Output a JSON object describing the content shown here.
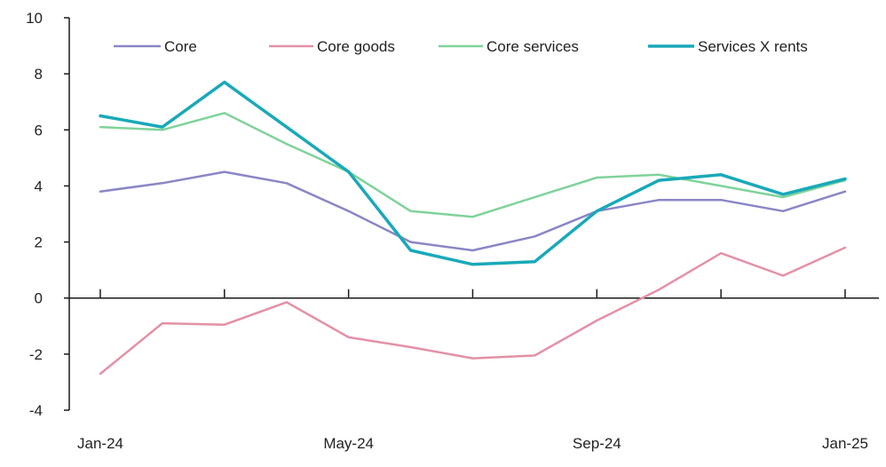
{
  "chart_data": {
    "type": "line",
    "title": "",
    "xlabel": "",
    "ylabel": "",
    "x": [
      "Jan-24",
      "Feb-24",
      "Mar-24",
      "Apr-24",
      "May-24",
      "Jun-24",
      "Jul-24",
      "Aug-24",
      "Sep-24",
      "Oct-24",
      "Nov-24",
      "Dec-24",
      "Jan-25"
    ],
    "x_tick_labels": [
      "Jan-24",
      "May-24",
      "Sep-24",
      "Jan-25"
    ],
    "ylim": [
      -4,
      10
    ],
    "y_ticks": [
      "10",
      "8",
      "6",
      "4",
      "2",
      "0",
      "-2",
      "-4"
    ],
    "legend_position": "top",
    "grid": false,
    "series": [
      {
        "name": "Core",
        "color": "#8a86c6",
        "values": [
          3.8,
          4.1,
          4.5,
          4.1,
          3.1,
          2.0,
          1.7,
          2.2,
          3.1,
          3.5,
          3.5,
          3.1,
          3.8
        ]
      },
      {
        "name": "Core goods",
        "color": "#e391a6",
        "values": [
          -2.7,
          -0.9,
          -0.95,
          -0.15,
          -1.4,
          -1.75,
          -2.15,
          -2.05,
          -0.8,
          0.3,
          1.6,
          0.8,
          1.8
        ]
      },
      {
        "name": "Core services",
        "color": "#7fd39a",
        "values": [
          6.1,
          6.0,
          6.6,
          5.5,
          4.5,
          3.1,
          2.9,
          3.6,
          4.3,
          4.4,
          4.0,
          3.6,
          4.2
        ]
      },
      {
        "name": "Services X rents",
        "color": "#19a9b9",
        "values": [
          6.5,
          6.1,
          7.7,
          6.1,
          4.5,
          1.7,
          1.2,
          1.3,
          3.1,
          4.2,
          4.4,
          3.7,
          4.25
        ]
      }
    ]
  }
}
